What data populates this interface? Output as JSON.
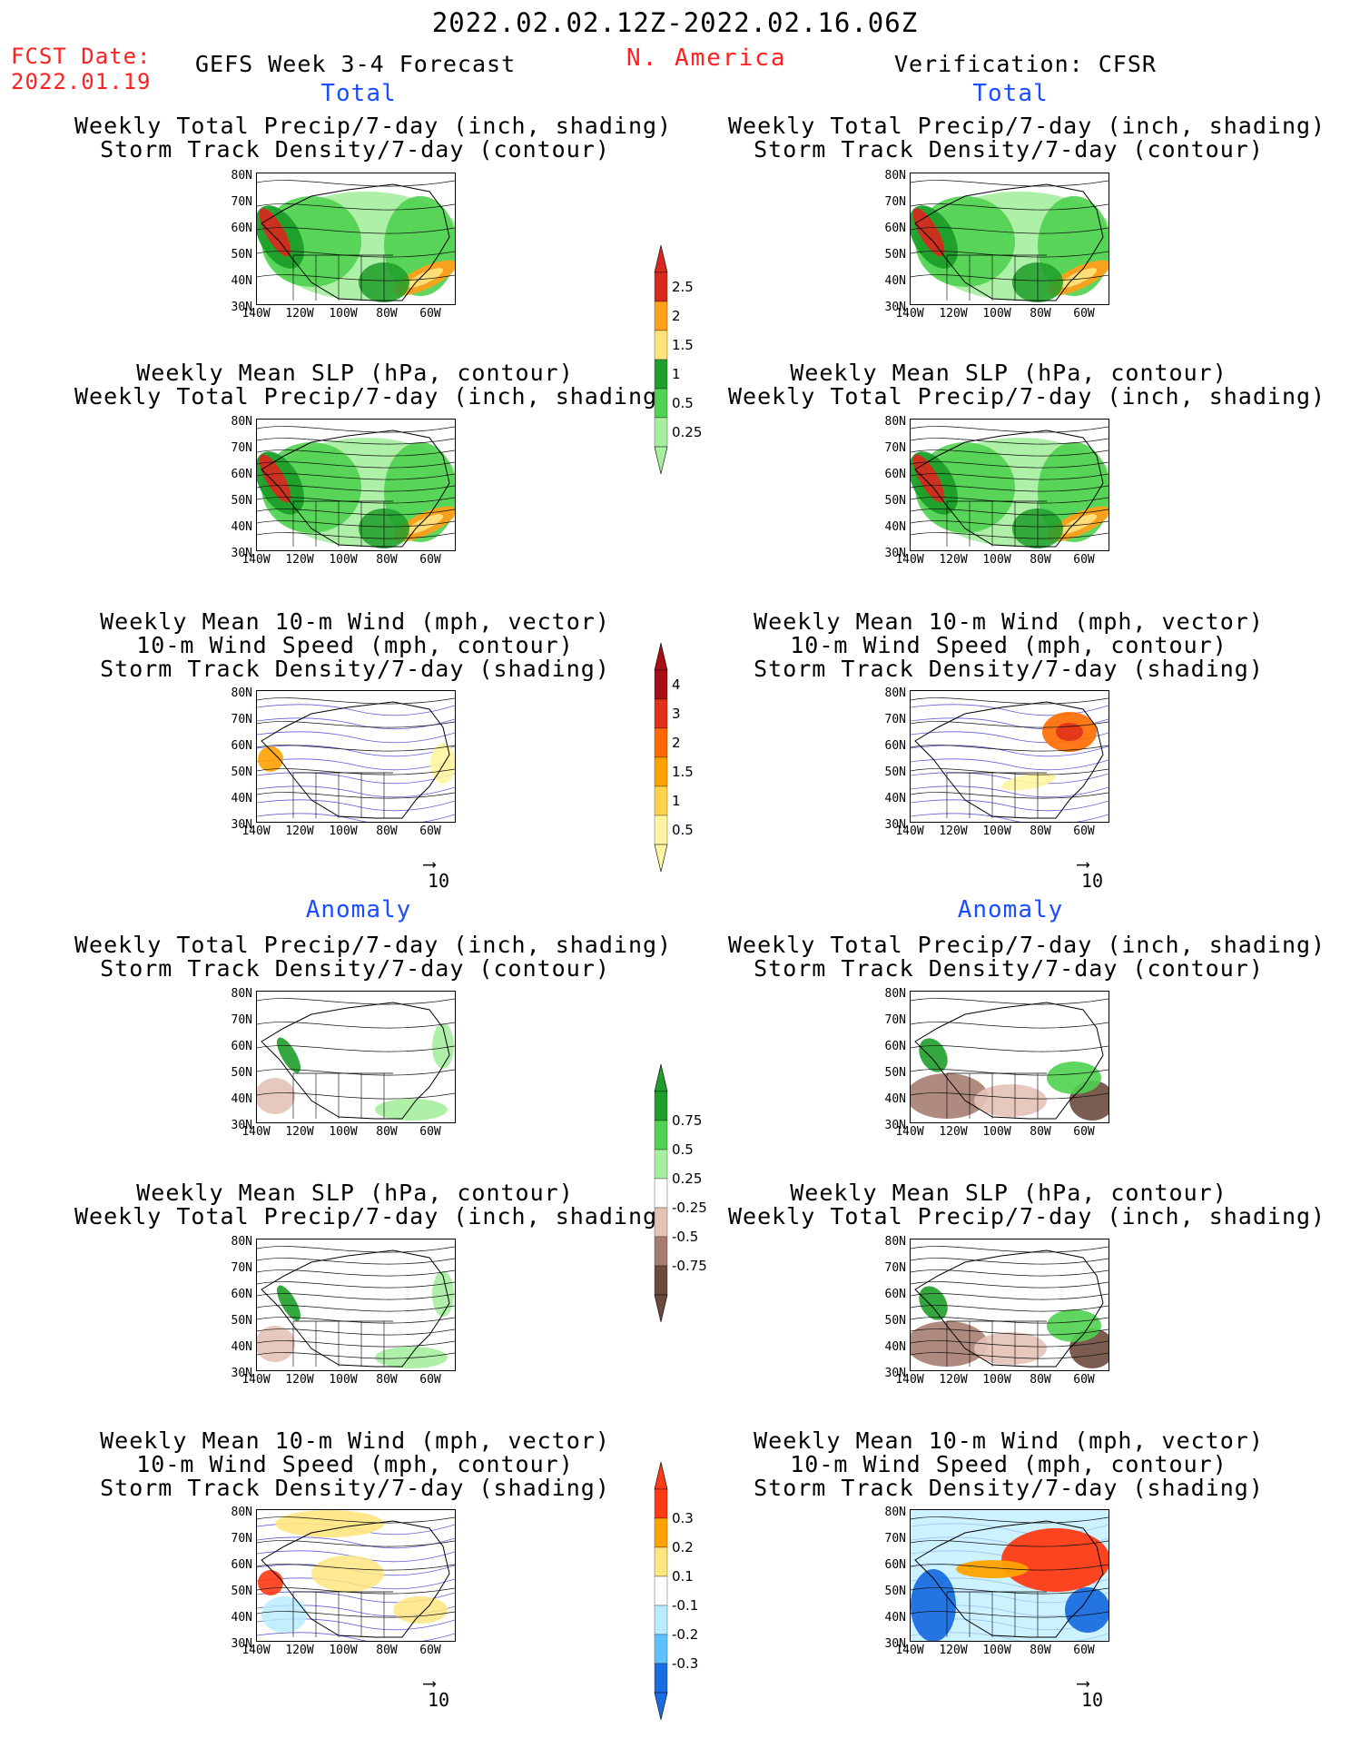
{
  "header": {
    "period": "2022.02.02.12Z-2022.02.16.06Z",
    "fcst_label": "FCST Date:",
    "fcst_date": "2022.01.19",
    "left_title": "GEFS Week 3-4 Forecast",
    "region": "N. America",
    "right_title": "Verification: CFSR"
  },
  "sections": {
    "total": "Total",
    "anomaly": "Anomaly"
  },
  "panel_titles": {
    "precip_storm": [
      "Weekly Total Precip/7-day (inch, shading)",
      "Storm Track Density/7-day (contour)"
    ],
    "slp_precip": [
      "Weekly Mean SLP (hPa, contour)",
      "Weekly Total Precip/7-day (inch, shading)"
    ],
    "wind": [
      "Weekly Mean 10-m Wind (mph, vector)",
      "10-m Wind Speed (mph, contour)",
      "Storm Track Density/7-day (shading)"
    ]
  },
  "axes": {
    "lat_labels": [
      "80N",
      "70N",
      "60N",
      "50N",
      "40N",
      "30N"
    ],
    "lon_labels": [
      "140W",
      "120W",
      "100W",
      "80W",
      "60W"
    ]
  },
  "vector_ref": "10",
  "colorbars": {
    "precip_total": {
      "labels": [
        "2.5",
        "2",
        "1.5",
        "1",
        "0.5",
        "0.25"
      ],
      "colors": [
        "#d62a1e",
        "#ff9f1c",
        "#ffe27a",
        "#1e9e2a",
        "#4fd24f",
        "#a6eea0"
      ]
    },
    "storm_total": {
      "labels": [
        "4",
        "3",
        "2",
        "1.5",
        "1",
        "0.5"
      ],
      "colors": [
        "#a50f15",
        "#e0321b",
        "#ff6a00",
        "#ffa200",
        "#ffd24d",
        "#fff5a0"
      ]
    },
    "precip_anom": {
      "labels": [
        "0.75",
        "0.5",
        "0.25",
        "-0.25",
        "-0.5",
        "-0.75"
      ],
      "colors": [
        "#1e9e2a",
        "#4fd24f",
        "#a6eea0",
        "#ffffff",
        "#e3c2b8",
        "#a67d70",
        "#6b4a3e"
      ]
    },
    "storm_anom": {
      "labels": [
        "0.3",
        "0.2",
        "0.1",
        "-0.1",
        "-0.2",
        "-0.3"
      ],
      "colors": [
        "#ff3a14",
        "#ffa200",
        "#ffe680",
        "#ffffff",
        "#b8ecff",
        "#5fc0ff",
        "#1a6de0"
      ]
    }
  }
}
